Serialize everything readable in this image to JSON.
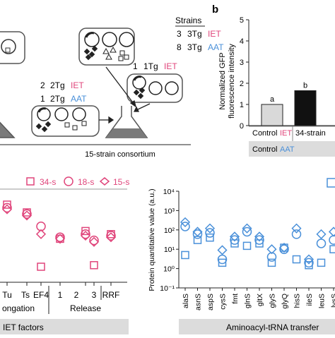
{
  "panel_a": {
    "strains_heading": "Strains",
    "strain_rows": [
      {
        "count": "3",
        "name": "3Tg",
        "type": "IET"
      },
      {
        "count": "8",
        "name": "3Tg",
        "type": "AAT"
      }
    ],
    "mid_rows": [
      {
        "count": "2",
        "name": "2Tg",
        "type": "IET"
      },
      {
        "count": "1",
        "name": "2Tg",
        "type": "AAT"
      }
    ],
    "right_row": {
      "count": "1",
      "name": "1Tg",
      "type": "IET"
    },
    "consortium_label": "15-strain consortium"
  },
  "panel_b": {
    "panel_label": "b",
    "ylabel_line1": "Normalized GFP",
    "ylabel_line2": "fluorescence intensity",
    "table_row1": {
      "label": "Control",
      "tag": "IET",
      "value": "34-strain"
    },
    "table_row2": {
      "label": "Control",
      "tag": "AAT"
    }
  },
  "panel_c": {
    "legend": [
      "34-s",
      "18-s",
      "15-s"
    ],
    "tick_labels": [
      "Tu",
      "Ts",
      "EF4",
      "1",
      "2",
      "3",
      "RRF"
    ],
    "group_labels": [
      "ongation",
      "Release"
    ],
    "footer": "IET factors"
  },
  "panel_d": {
    "ylabel": "Protein quantitative value (a.u.)",
    "footer": "Aminoacyl-tRNA transfer"
  },
  "colors": {
    "iet": "#e0457b",
    "aat": "#4a90d9",
    "bar_control": "#d9d9d9",
    "bar_strain": "#111111"
  },
  "chart_data": [
    {
      "type": "bar",
      "categories": [
        "Control",
        "34-strain"
      ],
      "values": [
        1.0,
        1.65
      ],
      "significance": [
        "a",
        "b"
      ],
      "ylim": [
        0,
        5
      ],
      "yticks": [
        "0",
        "1",
        "2",
        "3",
        "4",
        "5"
      ],
      "xlabel": "",
      "ylabel": "Normalized GFP fluorescence intensity"
    },
    {
      "type": "scatter",
      "series": [
        {
          "name": "34-s",
          "marker": "square",
          "points": [
            {
              "x": "Tu",
              "y": 50
            },
            {
              "x": "Ts",
              "y": 45
            },
            {
              "x": "EF4",
              "y": 10
            },
            {
              "x": "1",
              "y": 28
            },
            {
              "x": "2",
              "y": 33
            },
            {
              "x": "3",
              "y": 11
            },
            {
              "x": "RRF",
              "y": 31
            }
          ]
        },
        {
          "name": "18-s",
          "marker": "circle",
          "points": [
            {
              "x": "Tu",
              "y": 48
            },
            {
              "x": "Ts",
              "y": 44
            },
            {
              "x": "EF4",
              "y": 36
            },
            {
              "x": "1",
              "y": 29
            },
            {
              "x": "2",
              "y": 31
            },
            {
              "x": "3",
              "y": 27
            },
            {
              "x": "RRF",
              "y": 30
            }
          ]
        },
        {
          "name": "15-s",
          "marker": "diamond",
          "points": [
            {
              "x": "Tu",
              "y": 47
            },
            {
              "x": "Ts",
              "y": 43
            },
            {
              "x": "EF4",
              "y": 31
            },
            {
              "x": "1",
              "y": 28
            },
            {
              "x": "2",
              "y": 30
            },
            {
              "x": "3",
              "y": 26
            },
            {
              "x": "RRF",
              "y": 29
            }
          ]
        }
      ]
    },
    {
      "type": "scatter",
      "yscale": "log",
      "ylim": [
        0.1,
        10000
      ],
      "yticks": [
        "10⁻¹",
        "10⁰",
        "10¹",
        "10²",
        "10³",
        "10⁴"
      ],
      "categories": [
        "alaS",
        "asnS",
        "aspS",
        "cysS",
        "fmt",
        "glnS",
        "gltX",
        "glyS",
        "glyQ",
        "hisS",
        "ileS",
        "leuS",
        "lysS"
      ],
      "series": [
        {
          "marker": "square",
          "values": [
            5,
            30,
            40,
            2,
            20,
            15,
            20,
            2,
            12,
            3,
            1.5,
            2,
            10
          ]
        },
        {
          "marker": "circle",
          "values": [
            150,
            60,
            70,
            3,
            30,
            80,
            30,
            4,
            10,
            60,
            2,
            20,
            30
          ]
        },
        {
          "marker": "diamond",
          "values": [
            250,
            80,
            120,
            9,
            45,
            120,
            45,
            10,
            12,
            120,
            3,
            60,
            80
          ]
        }
      ]
    }
  ]
}
